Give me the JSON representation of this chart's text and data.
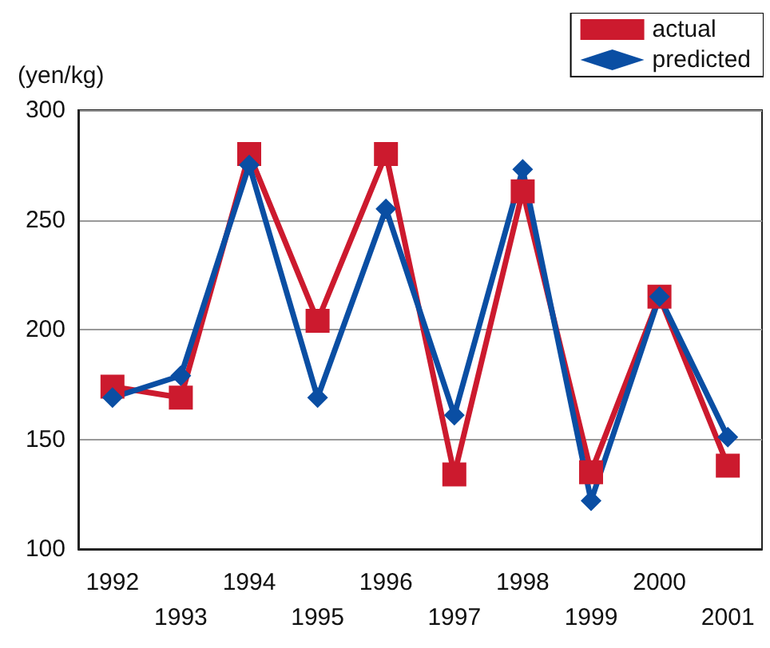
{
  "chart_data": {
    "type": "line",
    "ylabel": "(yen/kg)",
    "categories": [
      "1992",
      "1993",
      "1994",
      "1995",
      "1996",
      "1997",
      "1998",
      "1999",
      "2000",
      "2001"
    ],
    "series": [
      {
        "name": "actual",
        "color": "#cc1a2e",
        "marker": "square",
        "values": [
          174,
          169,
          280,
          204,
          280,
          134,
          263,
          135,
          215,
          138
        ]
      },
      {
        "name": "predicted",
        "color": "#0a4ea3",
        "marker": "diamond",
        "values": [
          169,
          179,
          275,
          169,
          255,
          161,
          273,
          122,
          215,
          151
        ]
      }
    ],
    "ylim": [
      100,
      300
    ],
    "yticks": [
      100,
      150,
      200,
      250,
      300
    ],
    "grid": "y",
    "legend": "top right",
    "line_style": "solid"
  }
}
